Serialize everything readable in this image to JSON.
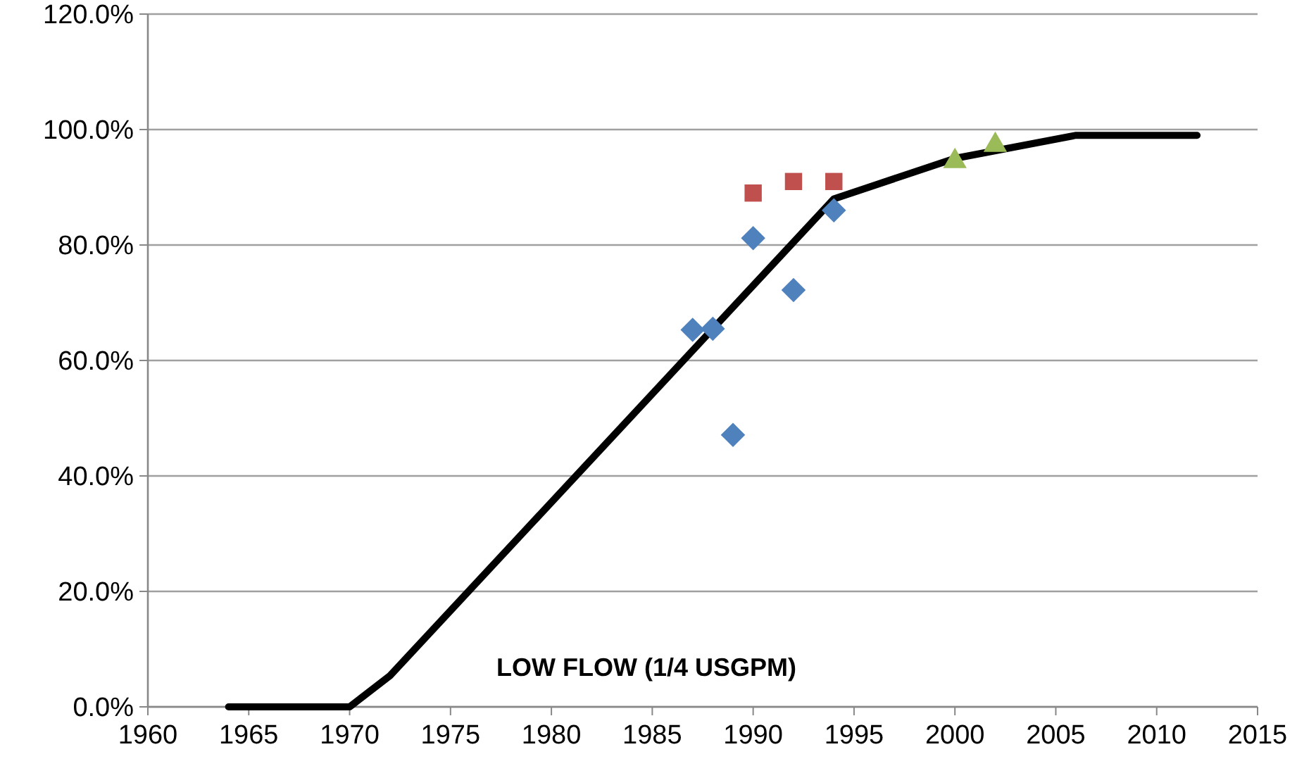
{
  "chart_data": {
    "type": "scatter",
    "xlim": [
      1960,
      2015
    ],
    "xticks": [
      1960,
      1965,
      1970,
      1975,
      1980,
      1985,
      1990,
      1995,
      2000,
      2005,
      2010,
      2015
    ],
    "ylim": [
      0,
      120
    ],
    "yticks": [
      {
        "value": 0,
        "label": "0.0%"
      },
      {
        "value": 20,
        "label": "20.0%"
      },
      {
        "value": 40,
        "label": "40.0%"
      },
      {
        "value": 60,
        "label": "60.0%"
      },
      {
        "value": 80,
        "label": "80.0%"
      },
      {
        "value": 100,
        "label": "100.0%"
      },
      {
        "value": 120,
        "label": "120.0%"
      }
    ],
    "grid": "y",
    "annotations": [
      "LOW FLOW (1/4 USGPM)"
    ],
    "series": [
      {
        "type": "line",
        "color": "#000000",
        "marker": "none",
        "line_style": "solid",
        "x": [
          1964,
          1970,
          1972,
          1994,
          2000,
          2006,
          2012
        ],
        "values": [
          0,
          0,
          5.4,
          88,
          95,
          99,
          99
        ]
      },
      {
        "color": "#4f81bd",
        "marker": "diamond",
        "x": [
          1987,
          1988,
          1989,
          1990,
          1992,
          1994
        ],
        "values": [
          65.3,
          65.5,
          47.1,
          81.2,
          72.2,
          86
        ]
      },
      {
        "color": "#c0504d",
        "marker": "square",
        "x": [
          1990,
          1992,
          1994
        ],
        "values": [
          89,
          91,
          91
        ]
      },
      {
        "color": "#9bbb59",
        "marker": "triangle",
        "x": [
          2000,
          2002
        ],
        "values": [
          95,
          97.8
        ]
      }
    ]
  }
}
